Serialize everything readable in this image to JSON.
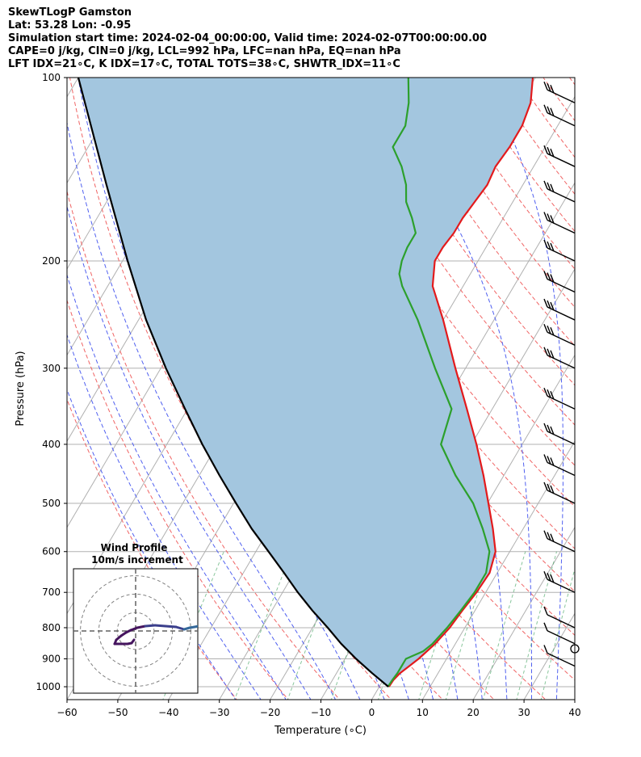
{
  "header": {
    "line1": "SkewTLogP Gamston",
    "line2": "Lat: 53.28   Lon: -0.95",
    "line3": "Simulation start time: 2024-02-04_00:00:00, Valid time: 2024-02-07T00:00:00.00",
    "line4": "CAPE=0 j/kg, CIN=0 j/kg, LCL=992 hPa, LFC=nan hPa, EQ=nan hPa",
    "line5": "LFT IDX=21∘C, K IDX=17∘C, TOTAL TOTS=38∘C, SHWTR_IDX=11∘C"
  },
  "chart_data": {
    "type": "line",
    "xlabel": "Temperature (∘C)",
    "ylabel": "Pressure (hPa)",
    "xlim": [
      -60,
      40
    ],
    "ylim": [
      1050,
      100
    ],
    "yscale": "log",
    "skew": true,
    "grid": true,
    "x_ticks": [
      -60,
      -50,
      -40,
      -30,
      -20,
      -10,
      0,
      10,
      20,
      30,
      40
    ],
    "x_tick_labels": [
      "−60",
      "−50",
      "−40",
      "−30",
      "−20",
      "−10",
      "0",
      "10",
      "20",
      "30",
      "40"
    ],
    "y_ticks": [
      1000,
      900,
      800,
      700,
      600,
      500,
      400,
      300,
      200,
      100
    ],
    "y_tick_labels": [
      "1000",
      "900",
      "800",
      "700",
      "600",
      "500",
      "400",
      "300",
      "200",
      "100"
    ],
    "series": [
      {
        "role": "temperature",
        "color": "#e31a1c",
        "points": [
          [
            1000,
            1.9
          ],
          [
            975,
            2.0
          ],
          [
            950,
            2.5
          ],
          [
            925,
            3.5
          ],
          [
            900,
            4.5
          ],
          [
            850,
            6.0
          ],
          [
            800,
            7.0
          ],
          [
            750,
            7.5
          ],
          [
            700,
            8.2
          ],
          [
            650,
            8.5
          ],
          [
            600,
            7.2
          ],
          [
            550,
            4.0
          ],
          [
            500,
            0.2
          ],
          [
            450,
            -4.0
          ],
          [
            400,
            -9.0
          ],
          [
            350,
            -15.0
          ],
          [
            300,
            -22.0
          ],
          [
            250,
            -30.0
          ],
          [
            220,
            -36.0
          ],
          [
            200,
            -38.5
          ],
          [
            190,
            -38.5
          ],
          [
            180,
            -38.0
          ],
          [
            170,
            -38.0
          ],
          [
            160,
            -37.5
          ],
          [
            150,
            -37.0
          ],
          [
            140,
            -37.5
          ],
          [
            130,
            -37.0
          ],
          [
            120,
            -37.0
          ],
          [
            110,
            -38.0
          ],
          [
            100,
            -40.5
          ]
        ]
      },
      {
        "role": "dewpoint",
        "color": "#2ca02c",
        "points": [
          [
            1000,
            1.7
          ],
          [
            975,
            1.8
          ],
          [
            950,
            2.0
          ],
          [
            925,
            2.0
          ],
          [
            900,
            2.0
          ],
          [
            875,
            4.5
          ],
          [
            850,
            5.5
          ],
          [
            800,
            6.5
          ],
          [
            750,
            7.2
          ],
          [
            700,
            7.8
          ],
          [
            650,
            7.8
          ],
          [
            600,
            6.0
          ],
          [
            550,
            2.0
          ],
          [
            500,
            -2.8
          ],
          [
            450,
            -9.5
          ],
          [
            400,
            -16.0
          ],
          [
            350,
            -18.0
          ],
          [
            300,
            -26.0
          ],
          [
            250,
            -35.0
          ],
          [
            220,
            -42.0
          ],
          [
            210,
            -44.0
          ],
          [
            200,
            -45.0
          ],
          [
            190,
            -45.5
          ],
          [
            180,
            -45.5
          ],
          [
            170,
            -48.0
          ],
          [
            160,
            -51.0
          ],
          [
            150,
            -53.0
          ],
          [
            140,
            -56.0
          ],
          [
            130,
            -60.0
          ],
          [
            120,
            -60.0
          ],
          [
            110,
            -62.0
          ],
          [
            100,
            -65.0
          ]
        ]
      },
      {
        "role": "parcel",
        "color": "#000000",
        "points": [
          [
            1000,
            1.8
          ],
          [
            950,
            -3.0
          ],
          [
            900,
            -7.8
          ],
          [
            850,
            -12.5
          ],
          [
            800,
            -17.0
          ],
          [
            750,
            -22.0
          ],
          [
            700,
            -27.0
          ],
          [
            650,
            -32.0
          ],
          [
            600,
            -37.5
          ],
          [
            550,
            -43.5
          ],
          [
            500,
            -49.5
          ],
          [
            450,
            -56.0
          ],
          [
            400,
            -63.0
          ],
          [
            350,
            -70.5
          ],
          [
            300,
            -79.0
          ],
          [
            250,
            -88.5
          ],
          [
            200,
            -99.0
          ],
          [
            150,
            -112.0
          ],
          [
            100,
            -130.0
          ]
        ]
      }
    ],
    "shading": {
      "between": [
        "parcel",
        "temperature"
      ],
      "color": "#a3c6df"
    },
    "wind_barbs": [
      {
        "p": 1000,
        "label": "calm"
      },
      {
        "p": 925
      },
      {
        "p": 850
      },
      {
        "p": 800
      },
      {
        "p": 700
      },
      {
        "p": 600
      },
      {
        "p": 500
      },
      {
        "p": 450
      },
      {
        "p": 400
      },
      {
        "p": 350
      },
      {
        "p": 300
      },
      {
        "p": 275
      },
      {
        "p": 250
      },
      {
        "p": 225
      },
      {
        "p": 200
      },
      {
        "p": 180
      },
      {
        "p": 160
      },
      {
        "p": 140
      },
      {
        "p": 120
      },
      {
        "p": 110
      }
    ],
    "inset": {
      "type": "hodograph",
      "title_line1": "Wind Profile",
      "title_line2": "10m/s increment",
      "rings": [
        10,
        20,
        30
      ]
    }
  }
}
